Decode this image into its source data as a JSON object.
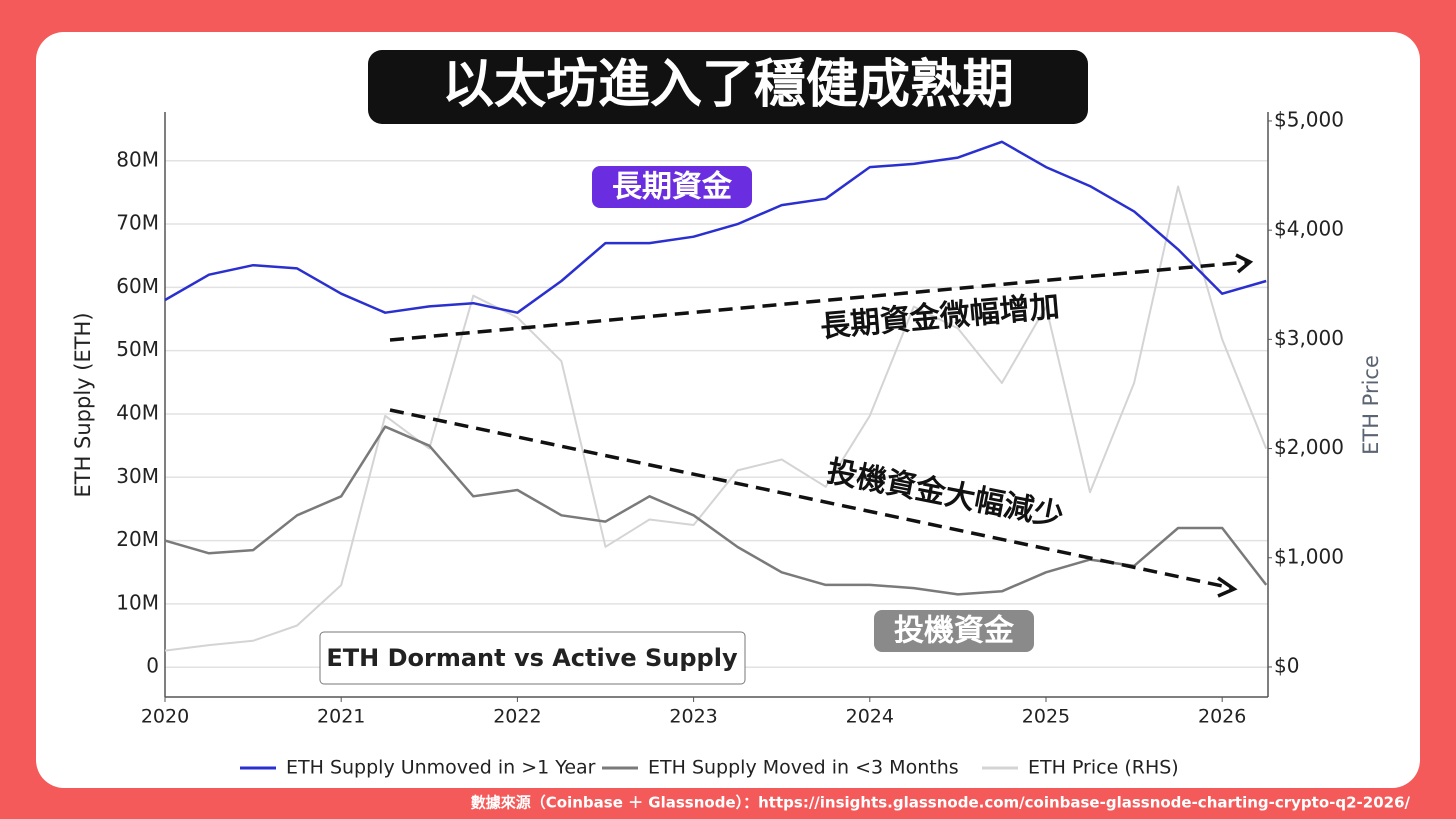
{
  "chart_data": {
    "type": "line",
    "title": "以太坊進入了穩健成熟期",
    "inset_label": "ETH Dormant vs Active Supply",
    "annotations": [
      "長期資金",
      "投機資金",
      "長期資金微幅增加",
      "投機資金大幅減少"
    ],
    "ylabel": "ETH Supply (ETH)",
    "y2label": "ETH Price",
    "grid": true,
    "x": [
      2020,
      2020.25,
      2020.5,
      2020.75,
      2021,
      2021.25,
      2021.5,
      2021.75,
      2022,
      2022.25,
      2022.5,
      2022.75,
      2023,
      2023.25,
      2023.5,
      2023.75,
      2024,
      2024.25,
      2024.5,
      2024.75,
      2025,
      2025.25,
      2025.5,
      2025.75,
      2026,
      2026.25
    ],
    "xlim": [
      2020,
      2026.26
    ],
    "xticks": [
      2020,
      2021,
      2022,
      2023,
      2024,
      2025,
      2026
    ],
    "ylim": [
      -4700000,
      87700000
    ],
    "yticks": [
      0,
      {
        "value": 10000000,
        "label": "10M"
      },
      {
        "value": 20000000,
        "label": "20M"
      },
      {
        "value": 30000000,
        "label": "30M"
      },
      {
        "value": 40000000,
        "label": "40M"
      },
      {
        "value": 50000000,
        "label": "50M"
      },
      {
        "value": 60000000,
        "label": "60M"
      },
      {
        "value": 70000000,
        "label": "70M"
      },
      {
        "value": 80000000,
        "label": "80M"
      }
    ],
    "y2lim": [
      -275,
      5082
    ],
    "y2ticks": [
      {
        "value": 0,
        "label": "$0"
      },
      {
        "value": 1000,
        "label": "$1,000"
      },
      {
        "value": 2000,
        "label": "$2,000"
      },
      {
        "value": 3000,
        "label": "$3,000"
      },
      {
        "value": 4000,
        "label": "$4,000"
      },
      {
        "value": 5000,
        "label": "$5,000"
      }
    ],
    "series": [
      {
        "name": "ETH Supply Unmoved in >1 Year",
        "color": "#2a2fd0",
        "values": [
          58000000,
          62000000,
          63500000,
          63000000,
          59000000,
          56000000,
          57000000,
          57500000,
          56000000,
          61000000,
          67000000,
          67000000,
          68000000,
          70000000,
          73000000,
          74000000,
          79000000,
          79500000,
          80500000,
          83000000,
          79000000,
          76000000,
          72000000,
          66000000,
          59000000,
          61000000
        ]
      },
      {
        "name": "ETH Supply Moved in <3 Months",
        "color": "#7a7a7a",
        "values": [
          20000000,
          18000000,
          18500000,
          24000000,
          27000000,
          38000000,
          35000000,
          27000000,
          28000000,
          24000000,
          23000000,
          27000000,
          24000000,
          19000000,
          15000000,
          13000000,
          13000000,
          12500000,
          11500000,
          12000000,
          15000000,
          17000000,
          16000000,
          22000000,
          22000000,
          13000000
        ]
      },
      {
        "name": "ETH Price (RHS)",
        "color": "#d4d4d4",
        "axis": "y2",
        "values": [
          150,
          200,
          240,
          380,
          750,
          2300,
          2000,
          3400,
          3200,
          2800,
          1100,
          1350,
          1300,
          1800,
          1900,
          1650,
          2300,
          3300,
          3100,
          2600,
          3300,
          1600,
          2600,
          4400,
          3000,
          2000
        ]
      }
    ]
  },
  "source": "數據來源（Coinbase ＋ Glassnode）：https://insights.glassnode.com/coinbase-glassnode-charting-crypto-q2-2026/"
}
